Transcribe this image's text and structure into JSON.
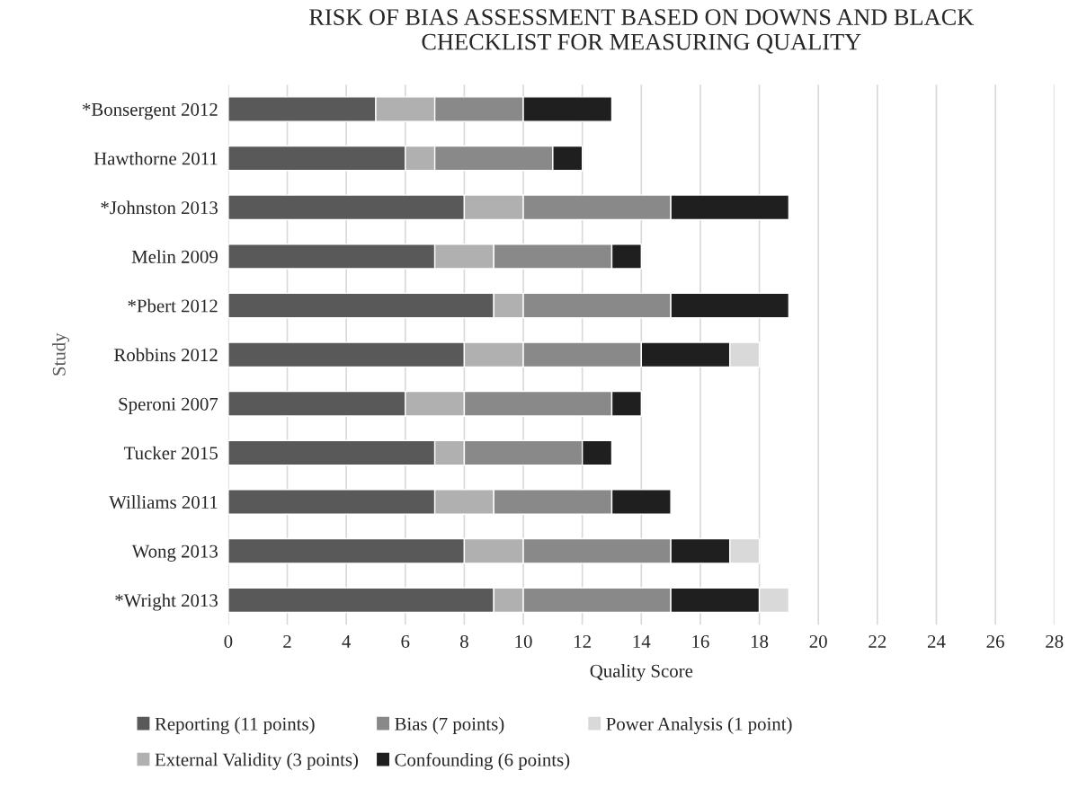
{
  "chart_data": {
    "type": "bar",
    "orientation": "horizontal",
    "stacked": true,
    "title": "RISK OF BIAS ASSESSMENT BASED ON DOWNS AND BLACK\nCHECKLIST FOR MEASURING QUALITY",
    "xlabel": "Quality Score",
    "ylabel": "Study",
    "categories": [
      "*Bonsergent 2012",
      "Hawthorne 2011",
      "*Johnston 2013",
      "Melin 2009",
      "*Pbert 2012",
      "Robbins 2012",
      "Speroni 2007",
      "Tucker 2015",
      "Williams 2011",
      "Wong 2013",
      "*Wright 2013"
    ],
    "series": [
      {
        "name": "Reporting (11 points)",
        "color": "#595959",
        "values": [
          5,
          6,
          8,
          7,
          9,
          8,
          6,
          7,
          7,
          8,
          9
        ]
      },
      {
        "name": "External Validity (3 points)",
        "color": "#b0b0b0",
        "values": [
          2,
          1,
          2,
          2,
          1,
          2,
          2,
          1,
          2,
          2,
          1
        ]
      },
      {
        "name": "Bias (7 points)",
        "color": "#898989",
        "values": [
          3,
          4,
          5,
          4,
          5,
          4,
          5,
          4,
          4,
          5,
          5
        ]
      },
      {
        "name": "Confounding (6 points)",
        "color": "#1f1f1f",
        "values": [
          3,
          1,
          4,
          1,
          4,
          3,
          1,
          1,
          2,
          2,
          3
        ]
      },
      {
        "name": "Power Analysis (1 point)",
        "color": "#d9d9d9",
        "values": [
          null,
          null,
          null,
          null,
          null,
          1,
          null,
          null,
          null,
          1,
          1
        ]
      }
    ],
    "xlim": [
      0,
      28
    ],
    "xticks": [
      0,
      2,
      4,
      6,
      8,
      10,
      12,
      14,
      16,
      18,
      20,
      22,
      24,
      26,
      28
    ],
    "grid": "x",
    "legend": "bottom"
  }
}
